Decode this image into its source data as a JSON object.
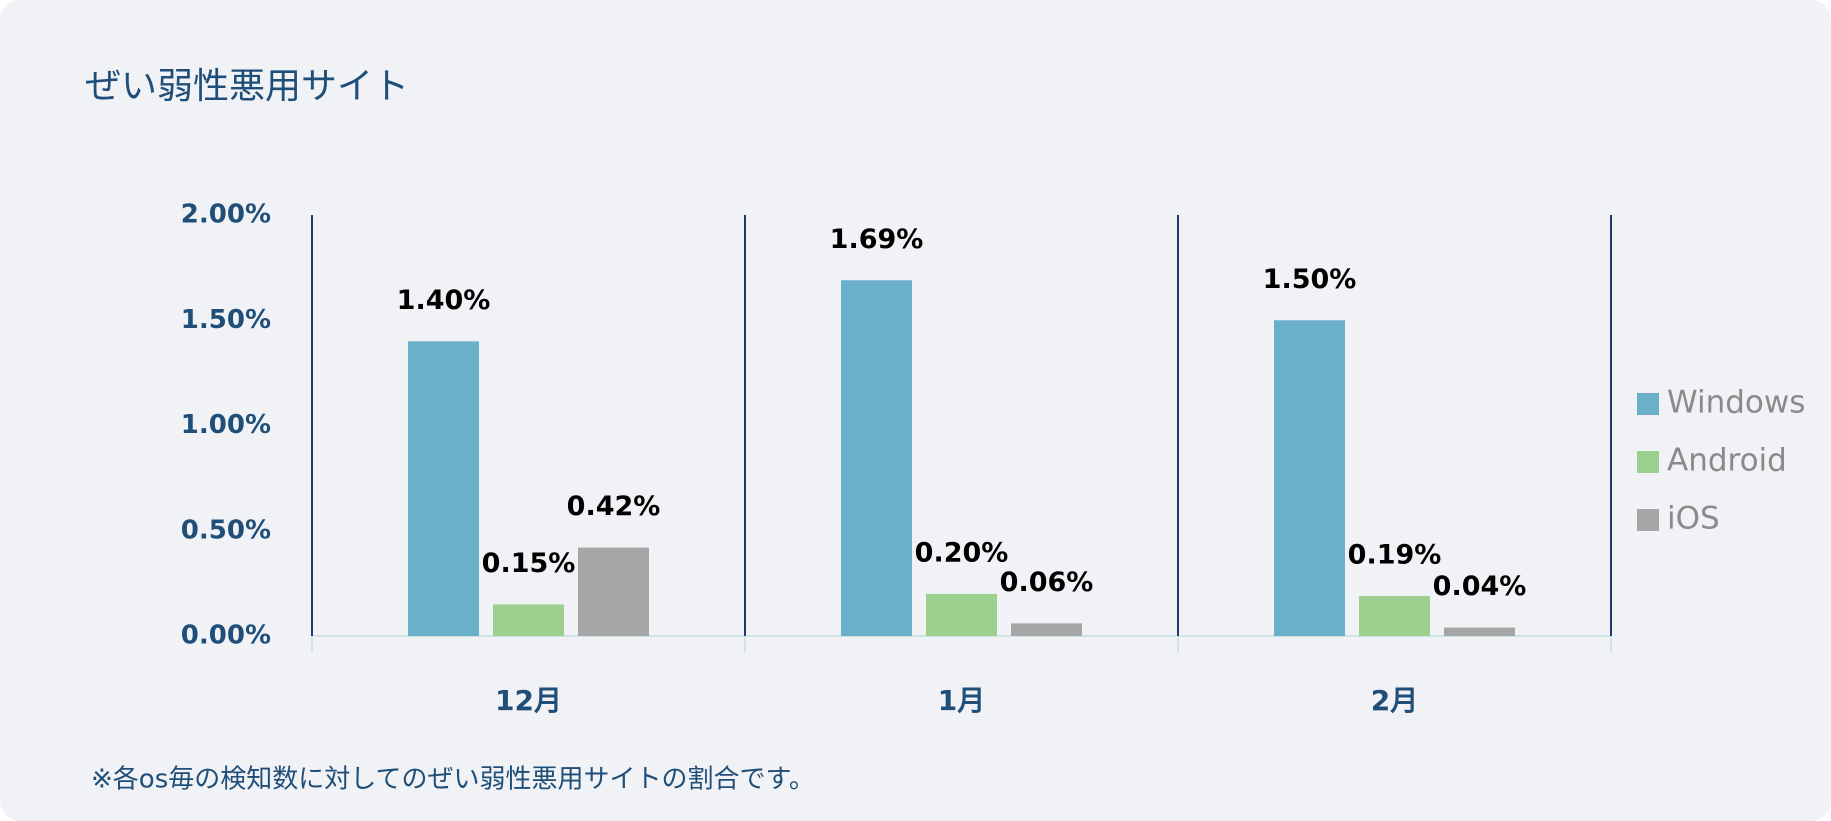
{
  "chart_data": {
    "type": "bar",
    "title": "ぜい弱性悪用サイト",
    "footnote": "※各os毎の検知数に対してのぜい弱性悪用サイトの割合です。",
    "categories": [
      "12月",
      "1月",
      "2月"
    ],
    "series": [
      {
        "name": "Windows",
        "color": "#6ab0cb",
        "values": [
          1.4,
          1.69,
          1.5
        ],
        "value_labels": [
          "1.40%",
          "1.69%",
          "1.50%"
        ]
      },
      {
        "name": "Android",
        "color": "#9bd08e",
        "values": [
          0.15,
          0.2,
          0.19
        ],
        "value_labels": [
          "0.15%",
          "0.20%",
          "0.19%"
        ]
      },
      {
        "name": "iOS",
        "color": "#a6a6a6",
        "values": [
          0.42,
          0.06,
          0.04
        ],
        "value_labels": [
          "0.42%",
          "0.06%",
          "0.04%"
        ]
      }
    ],
    "ylim": [
      0,
      2
    ],
    "yticks": [
      {
        "value": 0,
        "label": "0.00%"
      },
      {
        "value": 0.5,
        "label": "0.50%"
      },
      {
        "value": 1,
        "label": "1.00%"
      },
      {
        "value": 1.5,
        "label": "1.50%"
      },
      {
        "value": 2,
        "label": "2.00%"
      }
    ],
    "legend": "right"
  }
}
